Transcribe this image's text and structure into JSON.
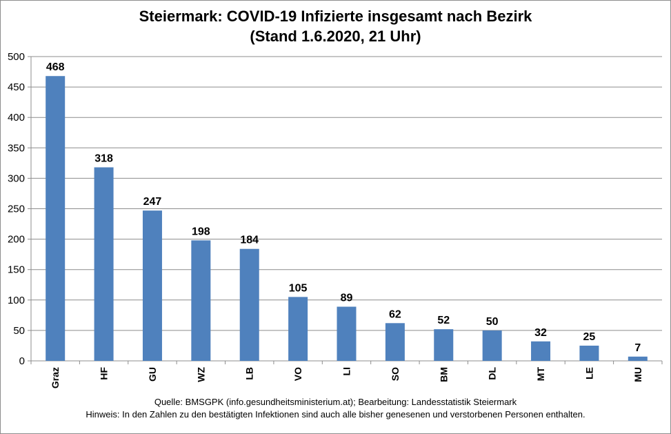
{
  "chart_data": {
    "type": "bar",
    "title": "Steiermark:  COVID-19 Infizierte insgesamt nach Bezirk",
    "subtitle": "(Stand 1.6.2020, 21 Uhr)",
    "categories": [
      "Graz",
      "HF",
      "GU",
      "WZ",
      "LB",
      "VO",
      "LI",
      "SO",
      "BM",
      "DL",
      "MT",
      "LE",
      "MU"
    ],
    "values": [
      468,
      318,
      247,
      198,
      184,
      105,
      89,
      62,
      52,
      50,
      32,
      25,
      7
    ],
    "ylim": [
      0,
      500
    ],
    "yticks": [
      0,
      50,
      100,
      150,
      200,
      250,
      300,
      350,
      400,
      450,
      500
    ],
    "grid": true,
    "bar_color": "#4f81bd",
    "xlabel": "",
    "ylabel": ""
  },
  "footer": {
    "source": "Quelle: BMSGPK (info.gesundheitsministerium.at); Bearbeitung: Landesstatistik Steiermark",
    "note": "Hinweis: In den Zahlen zu den bestätigten Infektionen sind auch alle bisher genesenen und verstorbenen Personen enthalten."
  }
}
